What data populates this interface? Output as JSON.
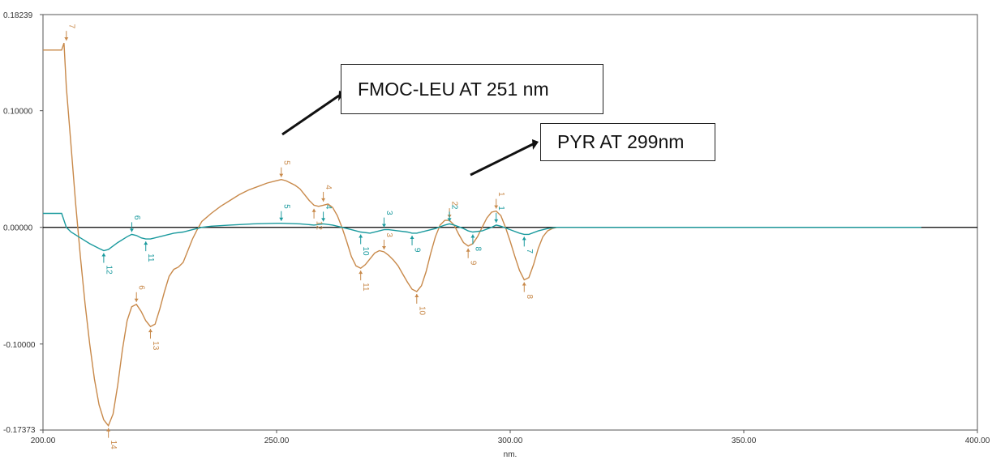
{
  "chart_data": {
    "type": "line",
    "xlabel": "nm.",
    "xlim": [
      200,
      400
    ],
    "ylim": [
      -0.17373,
      0.18239
    ],
    "x_ticks": [
      "200.00",
      "250.00",
      "300.00",
      "350.00",
      "400.00"
    ],
    "y_ticks": [
      {
        "value": 0.18239,
        "label": "0.18239"
      },
      {
        "value": 0.1,
        "label": "0.10000"
      },
      {
        "value": 0.0,
        "label": "0.00000"
      },
      {
        "value": -0.1,
        "label": "-0.10000"
      },
      {
        "value": -0.17373,
        "label": "-0.17373"
      }
    ],
    "grid": false,
    "series": [
      {
        "id": "fmoc",
        "color": "#c8894a",
        "x": [
          200,
          204,
          204.5,
          205,
          206,
          207,
          208,
          209,
          210,
          211,
          212,
          213,
          214,
          215,
          216,
          217,
          218,
          219,
          220,
          221,
          222,
          223,
          224,
          225,
          226,
          227,
          228,
          229,
          230,
          231,
          232,
          233,
          234,
          236,
          238,
          240,
          242,
          244,
          246,
          248,
          250,
          251,
          252,
          253,
          254,
          255,
          256,
          257,
          258,
          259,
          260,
          261,
          262,
          263,
          264,
          265,
          266,
          267,
          268,
          269,
          270,
          271,
          272,
          273,
          274,
          275,
          276,
          277,
          278,
          279,
          280,
          281,
          282,
          283,
          284,
          285,
          286,
          287,
          288,
          289,
          290,
          291,
          292,
          293,
          294,
          295,
          296,
          297,
          298,
          299,
          300,
          301,
          302,
          303,
          304,
          305,
          306,
          307,
          308,
          309,
          310,
          312,
          315
        ],
        "y": [
          0.152,
          0.152,
          0.158,
          0.12,
          0.07,
          0.02,
          -0.025,
          -0.065,
          -0.1,
          -0.13,
          -0.152,
          -0.165,
          -0.17,
          -0.16,
          -0.135,
          -0.105,
          -0.08,
          -0.068,
          -0.066,
          -0.072,
          -0.08,
          -0.085,
          -0.083,
          -0.07,
          -0.055,
          -0.042,
          -0.036,
          -0.034,
          -0.03,
          -0.02,
          -0.01,
          -0.002,
          0.005,
          0.012,
          0.018,
          0.023,
          0.028,
          0.032,
          0.035,
          0.038,
          0.04,
          0.041,
          0.04,
          0.038,
          0.036,
          0.033,
          0.028,
          0.023,
          0.019,
          0.018,
          0.019,
          0.02,
          0.017,
          0.01,
          0.0,
          -0.012,
          -0.025,
          -0.033,
          -0.035,
          -0.032,
          -0.027,
          -0.022,
          -0.02,
          -0.021,
          -0.024,
          -0.028,
          -0.033,
          -0.04,
          -0.047,
          -0.053,
          -0.055,
          -0.05,
          -0.038,
          -0.022,
          -0.008,
          0.002,
          0.006,
          0.006,
          0.002,
          -0.006,
          -0.013,
          -0.016,
          -0.014,
          -0.008,
          0.0,
          0.008,
          0.013,
          0.014,
          0.01,
          0.0,
          -0.012,
          -0.025,
          -0.037,
          -0.045,
          -0.043,
          -0.032,
          -0.018,
          -0.008,
          -0.003,
          -0.001,
          0.0,
          0.0,
          0.0
        ]
      },
      {
        "id": "pyr",
        "color": "#1a9a9e",
        "x": [
          200,
          203,
          204,
          205,
          206,
          208,
          210,
          212,
          213,
          214,
          216,
          218,
          219,
          220,
          221,
          222,
          223,
          224,
          226,
          228,
          230,
          232,
          234,
          236,
          240,
          245,
          250,
          251,
          255,
          258,
          260,
          262,
          264,
          266,
          268,
          270,
          272,
          273,
          274,
          276,
          278,
          279,
          280,
          282,
          284,
          286,
          287,
          288,
          290,
          291,
          292,
          294,
          296,
          297,
          298,
          300,
          302,
          303,
          304,
          306,
          308,
          310,
          315,
          320,
          340,
          360,
          380,
          388
        ],
        "y": [
          0.012,
          0.012,
          0.012,
          0.0,
          -0.004,
          -0.009,
          -0.014,
          -0.018,
          -0.02,
          -0.019,
          -0.013,
          -0.008,
          -0.006,
          -0.007,
          -0.009,
          -0.01,
          -0.01,
          -0.009,
          -0.007,
          -0.005,
          -0.004,
          -0.002,
          0.0,
          0.001,
          0.002,
          0.003,
          0.0035,
          0.0035,
          0.003,
          0.002,
          0.003,
          0.002,
          0.0,
          -0.002,
          -0.004,
          -0.005,
          -0.003,
          -0.002,
          -0.002,
          -0.003,
          -0.004,
          -0.005,
          -0.005,
          -0.003,
          -0.001,
          0.002,
          0.003,
          0.002,
          -0.001,
          -0.003,
          -0.004,
          -0.003,
          0.0,
          0.002,
          0.001,
          -0.002,
          -0.005,
          -0.006,
          -0.006,
          -0.003,
          -0.001,
          0.0,
          0.0,
          0.0,
          0.0,
          0.0,
          0.0,
          0.0
        ]
      }
    ],
    "peak_labels": [
      {
        "series": "fmoc",
        "label": "7",
        "x": 205,
        "y": 0.158,
        "dir": "up"
      },
      {
        "series": "fmoc",
        "label": "14",
        "x": 214,
        "y": -0.17,
        "dir": "down"
      },
      {
        "series": "fmoc",
        "label": "6",
        "x": 220,
        "y": -0.066,
        "dir": "up"
      },
      {
        "series": "fmoc",
        "label": "13",
        "x": 223,
        "y": -0.085,
        "dir": "down"
      },
      {
        "series": "fmoc",
        "label": "5",
        "x": 251,
        "y": 0.041,
        "dir": "up"
      },
      {
        "series": "fmoc",
        "label": "12",
        "x": 258,
        "y": 0.018,
        "dir": "down"
      },
      {
        "series": "fmoc",
        "label": "4",
        "x": 260,
        "y": 0.02,
        "dir": "up"
      },
      {
        "series": "fmoc",
        "label": "11",
        "x": 268,
        "y": -0.035,
        "dir": "down"
      },
      {
        "series": "fmoc",
        "label": "3",
        "x": 273,
        "y": -0.021,
        "dir": "up"
      },
      {
        "series": "fmoc",
        "label": "10",
        "x": 280,
        "y": -0.055,
        "dir": "down"
      },
      {
        "series": "fmoc",
        "label": "2",
        "x": 287,
        "y": 0.006,
        "dir": "up"
      },
      {
        "series": "fmoc",
        "label": "9",
        "x": 291,
        "y": -0.016,
        "dir": "down"
      },
      {
        "series": "fmoc",
        "label": "1",
        "x": 297,
        "y": 0.014,
        "dir": "up"
      },
      {
        "series": "fmoc",
        "label": "8",
        "x": 303,
        "y": -0.045,
        "dir": "down"
      },
      {
        "series": "pyr",
        "label": "12",
        "x": 213,
        "y": -0.02,
        "dir": "down"
      },
      {
        "series": "pyr",
        "label": "6",
        "x": 219,
        "y": -0.006,
        "dir": "up"
      },
      {
        "series": "pyr",
        "label": "11",
        "x": 222,
        "y": -0.01,
        "dir": "down"
      },
      {
        "series": "pyr",
        "label": "5",
        "x": 251,
        "y": 0.0035,
        "dir": "up"
      },
      {
        "series": "pyr",
        "label": "4",
        "x": 260,
        "y": 0.003,
        "dir": "up"
      },
      {
        "series": "pyr",
        "label": "10",
        "x": 268,
        "y": -0.004,
        "dir": "down"
      },
      {
        "series": "pyr",
        "label": "3",
        "x": 273,
        "y": -0.002,
        "dir": "up"
      },
      {
        "series": "pyr",
        "label": "9",
        "x": 279,
        "y": -0.005,
        "dir": "down"
      },
      {
        "series": "pyr",
        "label": "2",
        "x": 287,
        "y": 0.003,
        "dir": "up"
      },
      {
        "series": "pyr",
        "label": "8",
        "x": 292,
        "y": -0.004,
        "dir": "down"
      },
      {
        "series": "pyr",
        "label": "1",
        "x": 297,
        "y": 0.002,
        "dir": "up"
      },
      {
        "series": "pyr",
        "label": "7",
        "x": 303,
        "y": -0.006,
        "dir": "down"
      }
    ],
    "annotations": [
      {
        "id": "fmoc",
        "text": "FMOC-LEU AT 251 nm"
      },
      {
        "id": "pyr",
        "text": "PYR AT 299nm"
      }
    ]
  }
}
